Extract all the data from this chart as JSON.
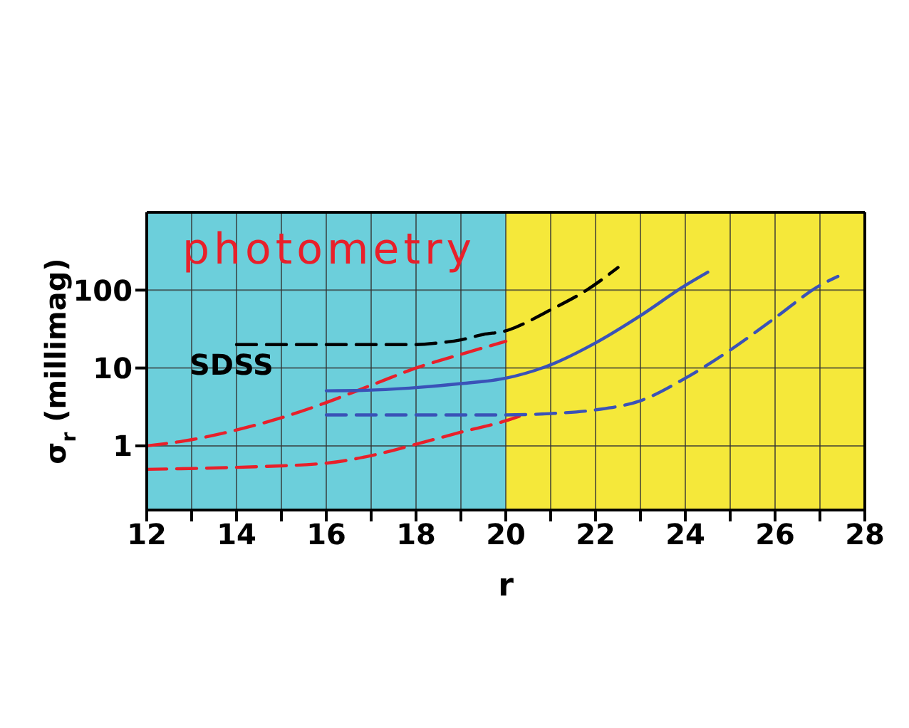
{
  "chart_data": {
    "type": "line",
    "xlabel": "r",
    "ylabel": "σ$_{r}$ (millimag)",
    "annotations": [
      "photometry",
      "SDSS"
    ],
    "xlim": [
      12,
      28
    ],
    "xticks": [
      12,
      {
        "value": 13,
        "label": null
      },
      14,
      {
        "value": 15,
        "label": null
      },
      16,
      {
        "value": 17,
        "label": null
      },
      18,
      {
        "value": 19,
        "label": null
      },
      20,
      {
        "value": 21,
        "label": null
      },
      22,
      {
        "value": 23,
        "label": null
      },
      24,
      {
        "value": 25,
        "label": null
      },
      26,
      {
        "value": 27,
        "label": null
      },
      28
    ],
    "ylim": [
      0.15,
      1000
    ],
    "yticks": [
      1,
      10,
      100
    ],
    "log": "y",
    "grid": true,
    "bands": [
      {
        "axis": "x",
        "from": 12,
        "to": 20,
        "color": "#6ccfdb"
      },
      {
        "axis": "x",
        "from": 20,
        "to": 28,
        "color": "#f5e83a"
      }
    ],
    "series": [
      {
        "color": "#000000",
        "line_style": "dashed",
        "x": [
          14,
          16,
          18,
          18.5,
          19,
          19.5,
          20,
          20.2,
          20.95,
          21.8,
          22.5
        ],
        "values": [
          20,
          20,
          20,
          21,
          23,
          27,
          30,
          33,
          54,
          100,
          195
        ]
      },
      {
        "color": "#e8202a",
        "line_style": "dashed",
        "x": [
          12,
          13,
          14,
          15,
          16,
          17,
          18,
          19,
          20
        ],
        "values": [
          1,
          1.2,
          1.6,
          2.3,
          3.6,
          6,
          10,
          15,
          22
        ]
      },
      {
        "color": "#e8202a",
        "line_style": "dashed",
        "x": [
          12,
          14,
          16,
          17,
          18,
          19,
          20,
          20.3
        ],
        "values": [
          0.5,
          0.53,
          0.6,
          0.75,
          1.05,
          1.5,
          2.1,
          2.4
        ]
      },
      {
        "color": "#3a52b8",
        "line_style": "solid",
        "x": [
          16,
          17,
          18,
          19,
          20,
          21,
          22,
          23,
          24,
          24.5
        ],
        "values": [
          5.1,
          5.2,
          5.6,
          6.3,
          7.4,
          11,
          21,
          47,
          115,
          170
        ]
      },
      {
        "color": "#3a52b8",
        "line_style": "dashed",
        "x": [
          16,
          18,
          20,
          21,
          22,
          23,
          24,
          25,
          26,
          27,
          27.4
        ],
        "values": [
          2.5,
          2.5,
          2.5,
          2.6,
          2.9,
          3.8,
          7.4,
          17,
          44,
          115,
          150
        ]
      }
    ]
  }
}
